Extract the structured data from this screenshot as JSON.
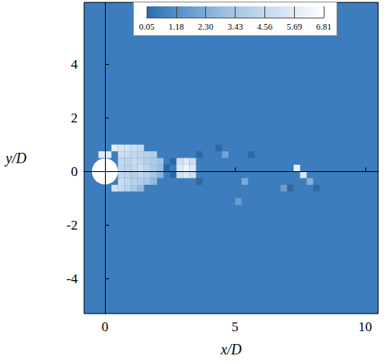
{
  "chart_data": {
    "type": "contour",
    "x_label": "x/D",
    "y_label": "y/D",
    "xlim": [
      -0.8,
      10.5
    ],
    "ylim": [
      -5.3,
      6.3
    ],
    "xticks": [
      0,
      5,
      10
    ],
    "yticks": [
      -4,
      -2,
      0,
      2,
      4
    ],
    "colorbar": {
      "range": [
        0.05,
        6.81
      ],
      "ticks": [
        0.05,
        1.18,
        {
          "value": 2.3,
          "label": "2.30"
        },
        3.43,
        4.56,
        5.69,
        6.81
      ]
    },
    "body": {
      "center": [
        0,
        0
      ],
      "diameter": 1,
      "value": 6.81
    },
    "field": {
      "background_value": 0.6,
      "cell_size": 0.25,
      "cells": [
        [
          -0.125,
          0.625,
          5.8
        ],
        [
          0.125,
          0.625,
          5.8
        ],
        [
          0.375,
          0.875,
          5.6
        ],
        [
          0.625,
          0.875,
          5.4
        ],
        [
          0.875,
          0.875,
          5.2
        ],
        [
          1.125,
          0.875,
          5.0
        ],
        [
          1.375,
          0.875,
          4.6
        ],
        [
          0.625,
          0.625,
          5.0
        ],
        [
          0.875,
          0.625,
          4.8
        ],
        [
          1.125,
          0.625,
          4.6
        ],
        [
          1.375,
          0.625,
          4.4
        ],
        [
          1.625,
          0.625,
          4.2
        ],
        [
          1.875,
          0.625,
          3.9
        ],
        [
          0.625,
          0.375,
          4.6
        ],
        [
          0.875,
          0.375,
          4.4
        ],
        [
          1.125,
          0.375,
          4.8
        ],
        [
          1.375,
          0.375,
          4.5
        ],
        [
          1.625,
          0.375,
          4.0
        ],
        [
          1.875,
          0.375,
          3.8
        ],
        [
          2.125,
          0.375,
          3.2
        ],
        [
          0.625,
          0.125,
          4.4
        ],
        [
          0.875,
          0.125,
          4.2
        ],
        [
          1.125,
          0.125,
          4.6
        ],
        [
          1.375,
          0.125,
          4.9
        ],
        [
          1.625,
          0.125,
          4.3
        ],
        [
          1.875,
          0.125,
          3.6
        ],
        [
          2.125,
          0.125,
          3.0
        ],
        [
          0.625,
          -0.125,
          4.5
        ],
        [
          0.875,
          -0.125,
          4.3
        ],
        [
          1.125,
          -0.125,
          4.0
        ],
        [
          1.375,
          -0.125,
          4.4
        ],
        [
          1.625,
          -0.125,
          4.1
        ],
        [
          1.875,
          -0.125,
          3.4
        ],
        [
          2.125,
          -0.125,
          2.6
        ],
        [
          0.625,
          -0.375,
          4.8
        ],
        [
          0.875,
          -0.375,
          4.6
        ],
        [
          1.125,
          -0.375,
          4.2
        ],
        [
          1.375,
          -0.375,
          3.9
        ],
        [
          1.625,
          -0.375,
          3.5
        ],
        [
          1.875,
          -0.375,
          2.8
        ],
        [
          0.375,
          -0.625,
          5.0
        ],
        [
          0.625,
          -0.625,
          4.7
        ],
        [
          0.875,
          -0.625,
          4.2
        ],
        [
          1.125,
          -0.625,
          3.6
        ],
        [
          1.375,
          -0.625,
          2.9
        ],
        [
          2.375,
          0.125,
          0.05
        ],
        [
          2.625,
          -0.125,
          0.05
        ],
        [
          2.625,
          0.375,
          0.05
        ],
        [
          2.875,
          -0.125,
          5.2
        ],
        [
          3.125,
          -0.125,
          5.6
        ],
        [
          3.375,
          -0.125,
          5.0
        ],
        [
          2.875,
          0.125,
          5.6
        ],
        [
          3.125,
          0.125,
          6.2
        ],
        [
          3.375,
          0.125,
          5.5
        ],
        [
          2.875,
          0.375,
          5.0
        ],
        [
          3.125,
          0.375,
          5.6
        ],
        [
          3.375,
          0.375,
          4.8
        ],
        [
          3.625,
          0.625,
          0.05
        ],
        [
          3.625,
          -0.375,
          0.05
        ],
        [
          4.375,
          0.875,
          0.05
        ],
        [
          4.625,
          0.625,
          2.0
        ],
        [
          5.375,
          -0.375,
          2.2
        ],
        [
          5.125,
          -1.125,
          1.8
        ],
        [
          5.625,
          0.625,
          0.05
        ],
        [
          7.375,
          0.125,
          6.0
        ],
        [
          7.625,
          -0.125,
          5.5
        ],
        [
          7.875,
          -0.375,
          2.5
        ],
        [
          6.875,
          -0.625,
          1.8
        ],
        [
          7.125,
          -0.625,
          0.05
        ],
        [
          8.125,
          -0.625,
          0.05
        ]
      ]
    }
  }
}
